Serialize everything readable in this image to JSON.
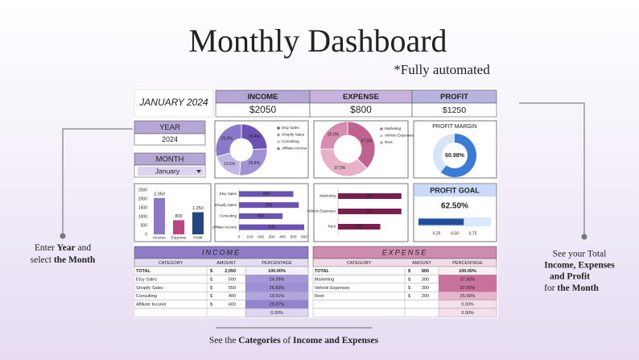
{
  "title": "Monthly Dashboard",
  "subtitle": "*Fully automated",
  "left_note": [
    "Enter ",
    "Year",
    " and",
    "select ",
    "the Month"
  ],
  "right_note": [
    "See your Total",
    "Income, Expenses",
    "and Profit",
    "for ",
    "the Month"
  ],
  "bottom_note": [
    "See the ",
    "Categories",
    " of ",
    "Income and Expenses"
  ],
  "dashboard": {
    "period": "JANUARY 2024",
    "kpis": [
      {
        "label": "INCOME",
        "value": "$2050"
      },
      {
        "label": "EXPENSE",
        "value": "$800"
      },
      {
        "label": "PROFIT",
        "value": "$1250"
      }
    ],
    "year": {
      "label": "YEAR",
      "value": "2024"
    },
    "month": {
      "label": "MONTH",
      "value": "January"
    },
    "income_pie": {
      "type": "donut",
      "categories": [
        "Etsy Sales",
        "Shopify Sales",
        "Consulting",
        "Affiliate Income"
      ],
      "values": [
        24.4,
        26.8,
        19.5,
        29.3
      ],
      "value_labels": [
        "24.4%",
        "26.8%",
        "19.5%",
        "29.3%"
      ],
      "colors": [
        "#6b52b3",
        "#a192d6",
        "#c2b8e6",
        "#8b78c8"
      ]
    },
    "expense_pie": {
      "type": "donut",
      "categories": [
        "Marketing",
        "Vehicle Expenses",
        "Rent"
      ],
      "values": [
        37.5,
        37.5,
        25.0
      ],
      "value_labels": [
        "37.5%",
        "37.5%",
        "25.0%"
      ],
      "colors": [
        "#c0628f",
        "#e7b2c9",
        "#d68bb0"
      ]
    },
    "profit_margin": {
      "type": "gauge",
      "title": "PROFIT MARGIN",
      "value": 60.98,
      "value_label": "60.98%",
      "ylim": [
        0,
        100
      ],
      "color": "#3a7bd5"
    },
    "summary_bar": {
      "type": "bar",
      "categories": [
        "Income",
        "Expense",
        "Profit"
      ],
      "values": [
        2050,
        800,
        1250
      ],
      "value_labels": [
        "2,050",
        "800",
        "1,250"
      ],
      "colors": [
        "#8b78c8",
        "#b8497f",
        "#24467f"
      ],
      "ylim": [
        0,
        2500
      ],
      "yticks": [
        0,
        500,
        1000,
        1500,
        2000,
        2500
      ]
    },
    "income_bar": {
      "type": "hbar",
      "categories": [
        "Etsy Sales",
        "Shopify Sales",
        "Consulting",
        "Affiliate Income"
      ],
      "values": [
        500,
        550,
        400,
        600
      ],
      "color": "#6b52b3",
      "xlim": [
        0,
        600
      ],
      "xticks": [
        0,
        100,
        200,
        300,
        400,
        500,
        600
      ]
    },
    "expense_bar": {
      "type": "hbar",
      "categories": [
        "Marketing",
        "Vehicle Expenses",
        "Rent"
      ],
      "values": [
        300,
        300,
        200
      ],
      "color": "#7a1e4e",
      "xlim": [
        0,
        320
      ]
    },
    "profit_goal": {
      "type": "progress",
      "title": "PROFIT GOAL",
      "value": 0.625,
      "value_label": "62.50%",
      "xlim": [
        0,
        1
      ],
      "xticks": [
        0.25,
        {
          "value": 0.5,
          "label": "0.50"
        },
        0.75
      ],
      "color": "#1f4e9a"
    },
    "income_table": {
      "title": "INCOME",
      "columns": [
        "CATEGORY",
        "AMOUNT",
        "PERCENTAGE"
      ],
      "rows": [
        {
          "category": "TOTAL",
          "currency": "$",
          "amount": "2,050",
          "percentage": "100.00%"
        },
        {
          "category": "Etsy Sales",
          "currency": "$",
          "amount": "500",
          "percentage": "24.39%"
        },
        {
          "category": "Shopify Sales",
          "currency": "$",
          "amount": "550",
          "percentage": "26.83%"
        },
        {
          "category": "Consulting",
          "currency": "$",
          "amount": "400",
          "percentage": "19.51%"
        },
        {
          "category": "Affiliate Income",
          "currency": "$",
          "amount": "600",
          "percentage": "29.27%"
        },
        {
          "percentage": "0.00%"
        }
      ]
    },
    "expense_table": {
      "title": "EXPENSE",
      "columns": [
        "CATEGORY",
        "AMOUNT",
        "PERCENTAGE"
      ],
      "rows": [
        {
          "category": "TOTAL",
          "currency": "$",
          "amount": "800",
          "percentage": "100.00%"
        },
        {
          "category": "Marketing",
          "currency": "$",
          "amount": "300",
          "percentage": "37.50%"
        },
        {
          "category": "Vehicle Expenses",
          "currency": "$",
          "amount": "300",
          "percentage": "37.50%"
        },
        {
          "category": "Rent",
          "currency": "$",
          "amount": "200",
          "percentage": "25.00%"
        },
        {
          "percentage": "0.00%"
        },
        {
          "percentage": "0.00%"
        }
      ]
    }
  }
}
